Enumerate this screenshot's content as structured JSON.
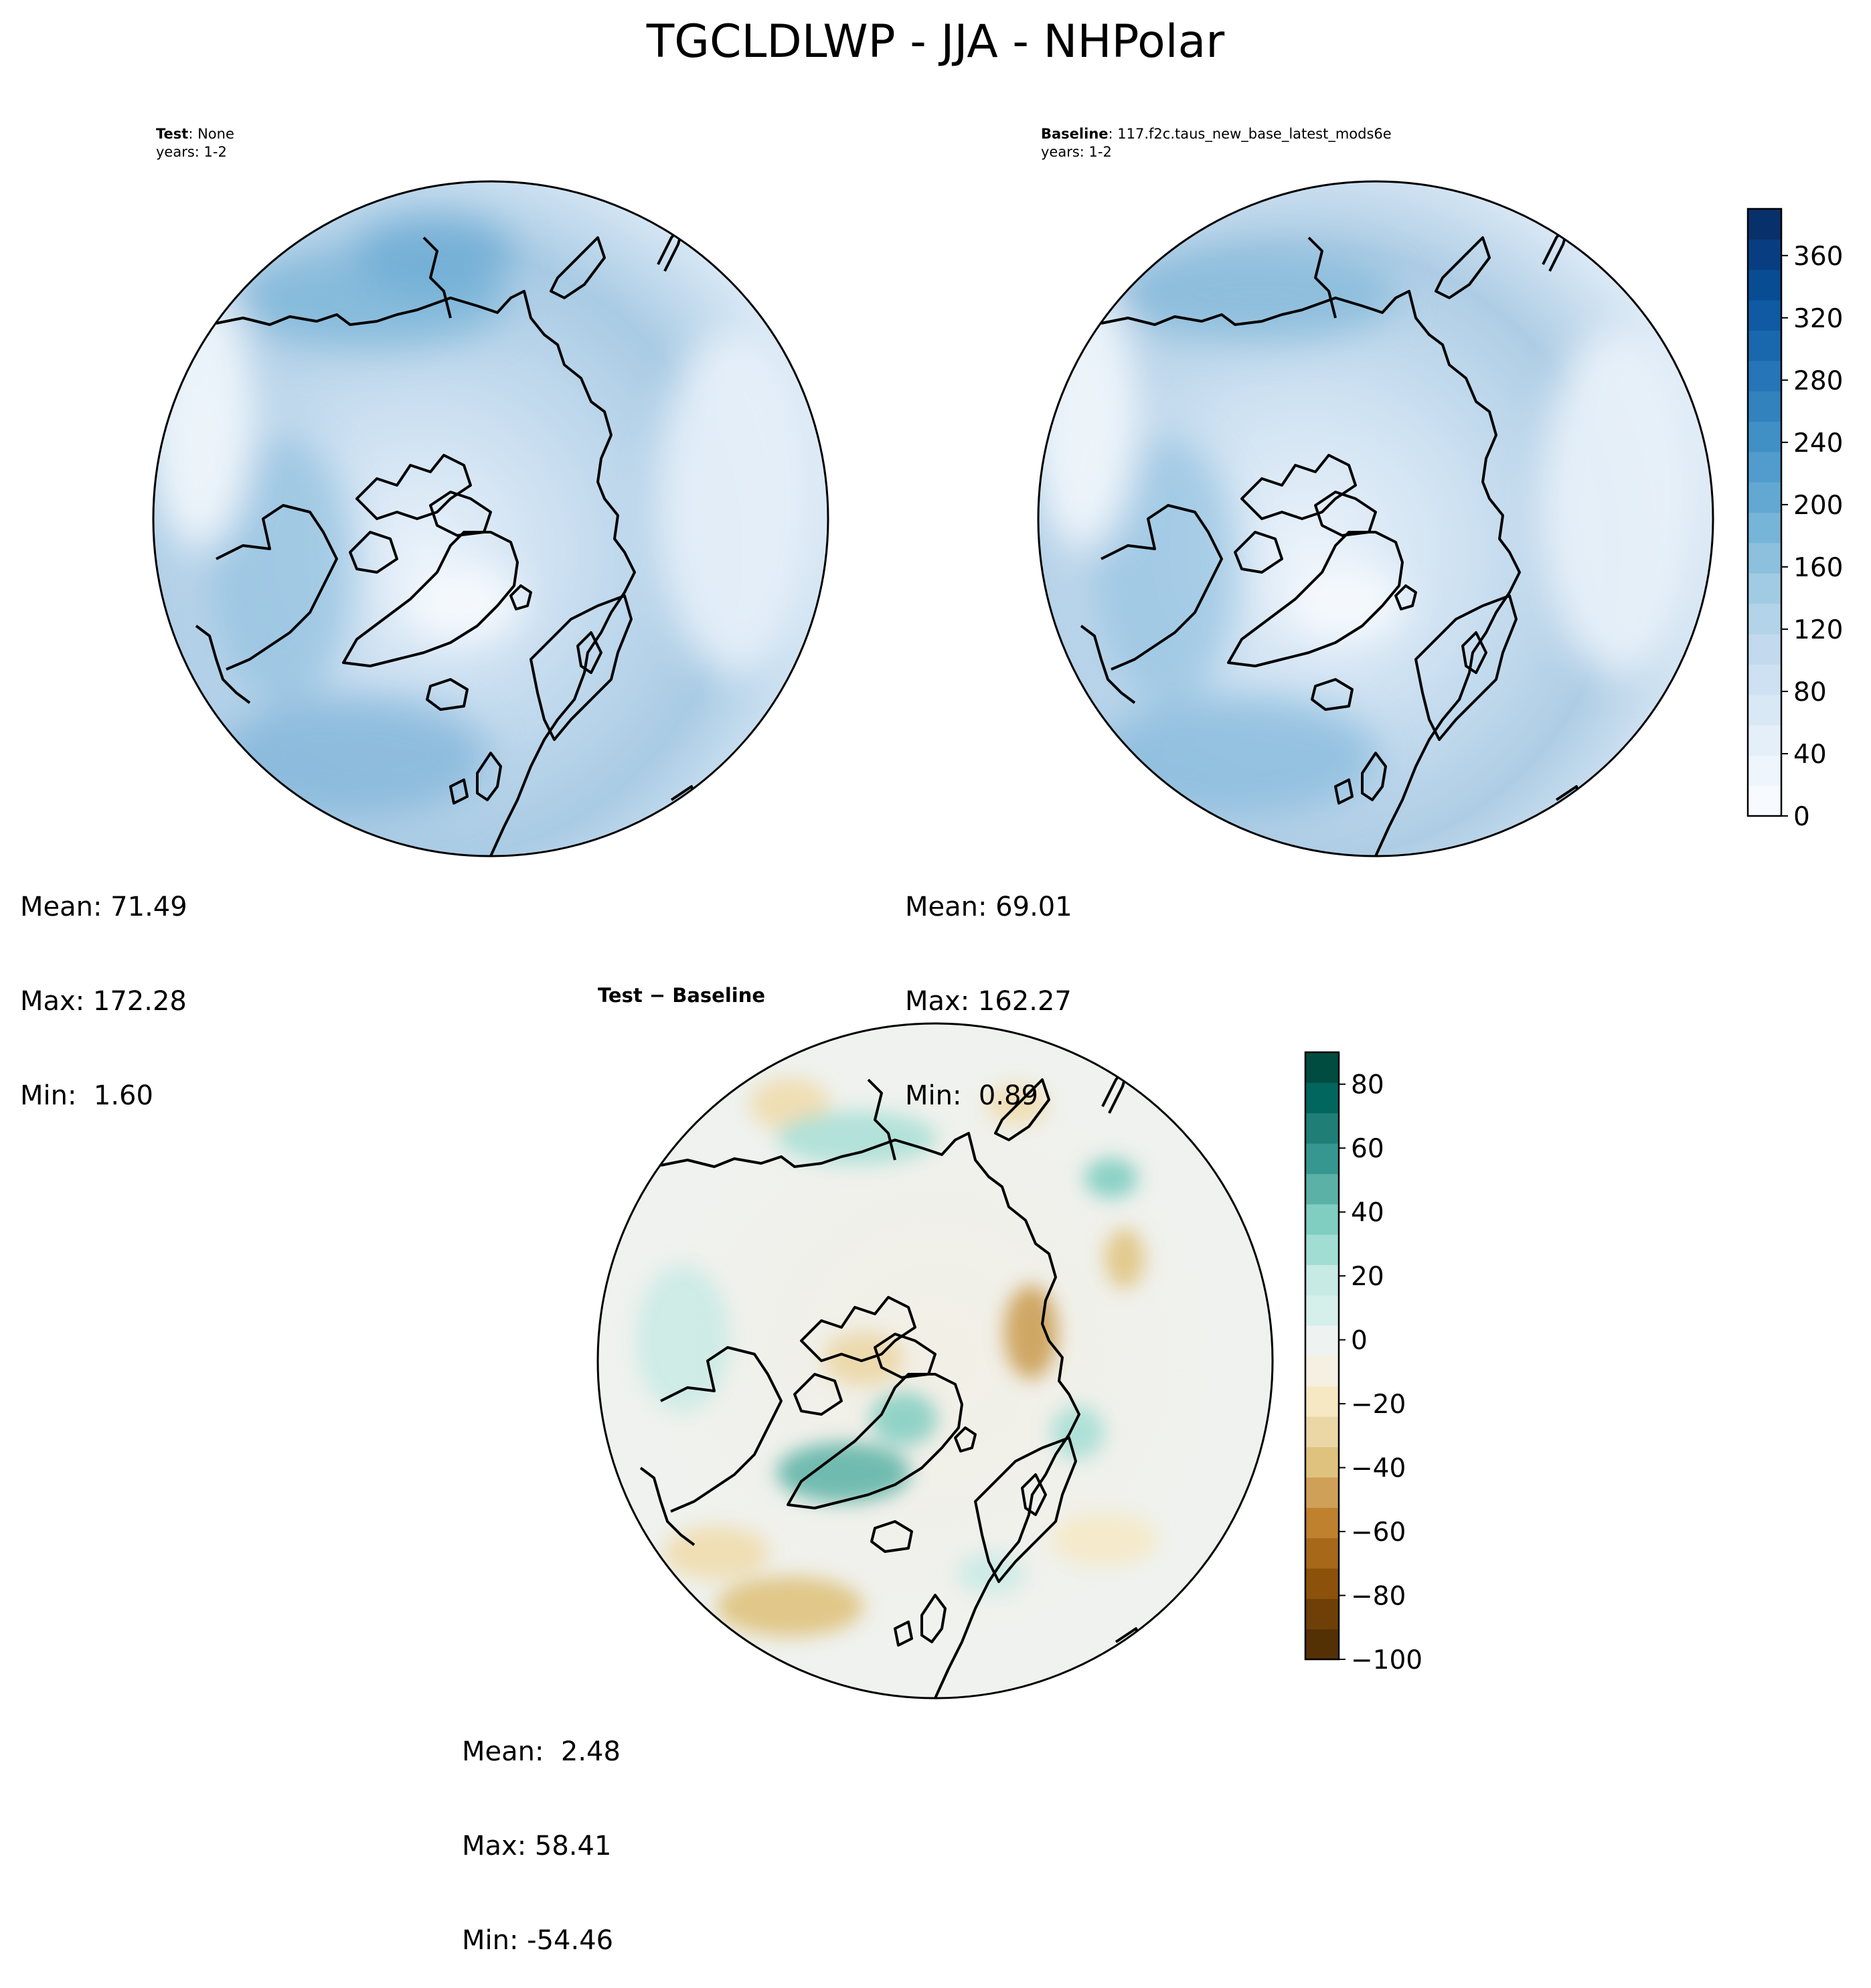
{
  "title": "TGCLDLWP - JJA - NHPolar",
  "panels": {
    "test": {
      "label_bold": "Test",
      "label_rest": ": None",
      "years": "years: 1-2",
      "stats": {
        "mean": "Mean: 71.49",
        "max": "Max: 172.28",
        "min": "Min:  1.60"
      }
    },
    "baseline": {
      "label_bold": "Baseline",
      "label_rest": ": 117.f2c.taus_new_base_latest_mods6e",
      "years": "years: 1-2",
      "stats": {
        "mean": "Mean: 69.01",
        "max": "Max: 162.27",
        "min": "Min:  0.89"
      }
    },
    "diff": {
      "label": "Test − Baseline",
      "stats": {
        "mean": "Mean:  2.48",
        "max": "Max: 58.41",
        "min": "Min: -54.46"
      }
    }
  },
  "colorbars": {
    "main": {
      "colormap": "Blues",
      "range": [
        0,
        390
      ],
      "ticks": [
        "0",
        "40",
        "80",
        "120",
        "160",
        "200",
        "240",
        "280",
        "320",
        "360"
      ],
      "tick_values": [
        0,
        40,
        80,
        120,
        160,
        200,
        240,
        280,
        320,
        360
      ],
      "colors": [
        "#f7fbff",
        "#eef5fc",
        "#e4eff9",
        "#d9e8f5",
        "#cee1f2",
        "#c2d9ee",
        "#b3d3e8",
        "#a1cbe2",
        "#8cc0dd",
        "#76b4d8",
        "#62a8d3",
        "#519ccc",
        "#4090c5",
        "#3282be",
        "#2575b7",
        "#1967ad",
        "#0f5aa3",
        "#084c94",
        "#083e81",
        "#08306b"
      ]
    },
    "diff": {
      "colormap": "BrBG",
      "range": [
        -100,
        90
      ],
      "ticks": [
        "−100",
        "−80",
        "−60",
        "−40",
        "−20",
        "0",
        "20",
        "40",
        "60",
        "80"
      ],
      "tick_values": [
        -100,
        -80,
        -60,
        -40,
        -20,
        0,
        20,
        40,
        60,
        80
      ],
      "colors": [
        "#543005",
        "#6e3f07",
        "#8c510a",
        "#a8681a",
        "#bf812d",
        "#cfa057",
        "#dfc27d",
        "#ebd6a5",
        "#f6e8c3",
        "#f5f0e1",
        "#eef3f1",
        "#d5efeb",
        "#c7eae5",
        "#a2ddd4",
        "#80cdc1",
        "#5bb1a6",
        "#35978f",
        "#1f7f77",
        "#01665e",
        "#004c40"
      ]
    }
  }
}
